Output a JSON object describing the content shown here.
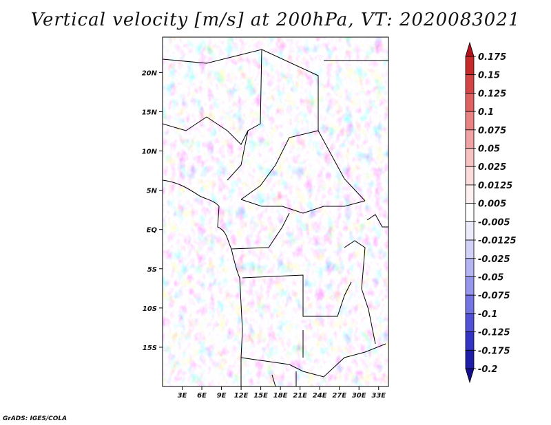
{
  "title": "Vertical velocity [m/s] at 200hPa, VT: 2020083021",
  "credit": "GrADS: IGES/COLA",
  "map": {
    "lat_labels": [
      "20N",
      "15N",
      "10N",
      "5N",
      "EQ",
      "5S",
      "10S",
      "15S"
    ],
    "lat_values": [
      20,
      15,
      10,
      5,
      0,
      -5,
      -10,
      -15
    ],
    "lon_labels": [
      "3E",
      "6E",
      "9E",
      "12E",
      "15E",
      "18E",
      "21E",
      "24E",
      "27E",
      "30E",
      "33E"
    ],
    "lon_values": [
      3,
      6,
      9,
      12,
      15,
      18,
      21,
      24,
      27,
      30,
      33
    ],
    "lon_range": [
      0,
      34.5
    ],
    "lat_range": [
      -20,
      24.5
    ]
  },
  "colorbar": {
    "labels": [
      "0.175",
      "0.15",
      "0.125",
      "0.1",
      "0.075",
      "0.05",
      "0.025",
      "0.0125",
      "0.005",
      "-0.005",
      "-0.0125",
      "-0.025",
      "-0.05",
      "-0.075",
      "-0.1",
      "-0.125",
      "-0.175",
      "-0.2"
    ],
    "colors": [
      "#b0141c",
      "#c62a2a",
      "#d44646",
      "#e06262",
      "#e98282",
      "#f1a2a2",
      "#f7c2c2",
      "#fbdcdc",
      "#fdf0f0",
      "#ffffff",
      "#ececfc",
      "#d2d2f8",
      "#b4b4f2",
      "#9696ec",
      "#7474e2",
      "#5252d6",
      "#3434c4",
      "#1e1ea8",
      "#140e8c"
    ]
  },
  "colors": {
    "red_accent": "#d04040",
    "blue_accent": "#5a5ad8",
    "border": "#000000"
  }
}
